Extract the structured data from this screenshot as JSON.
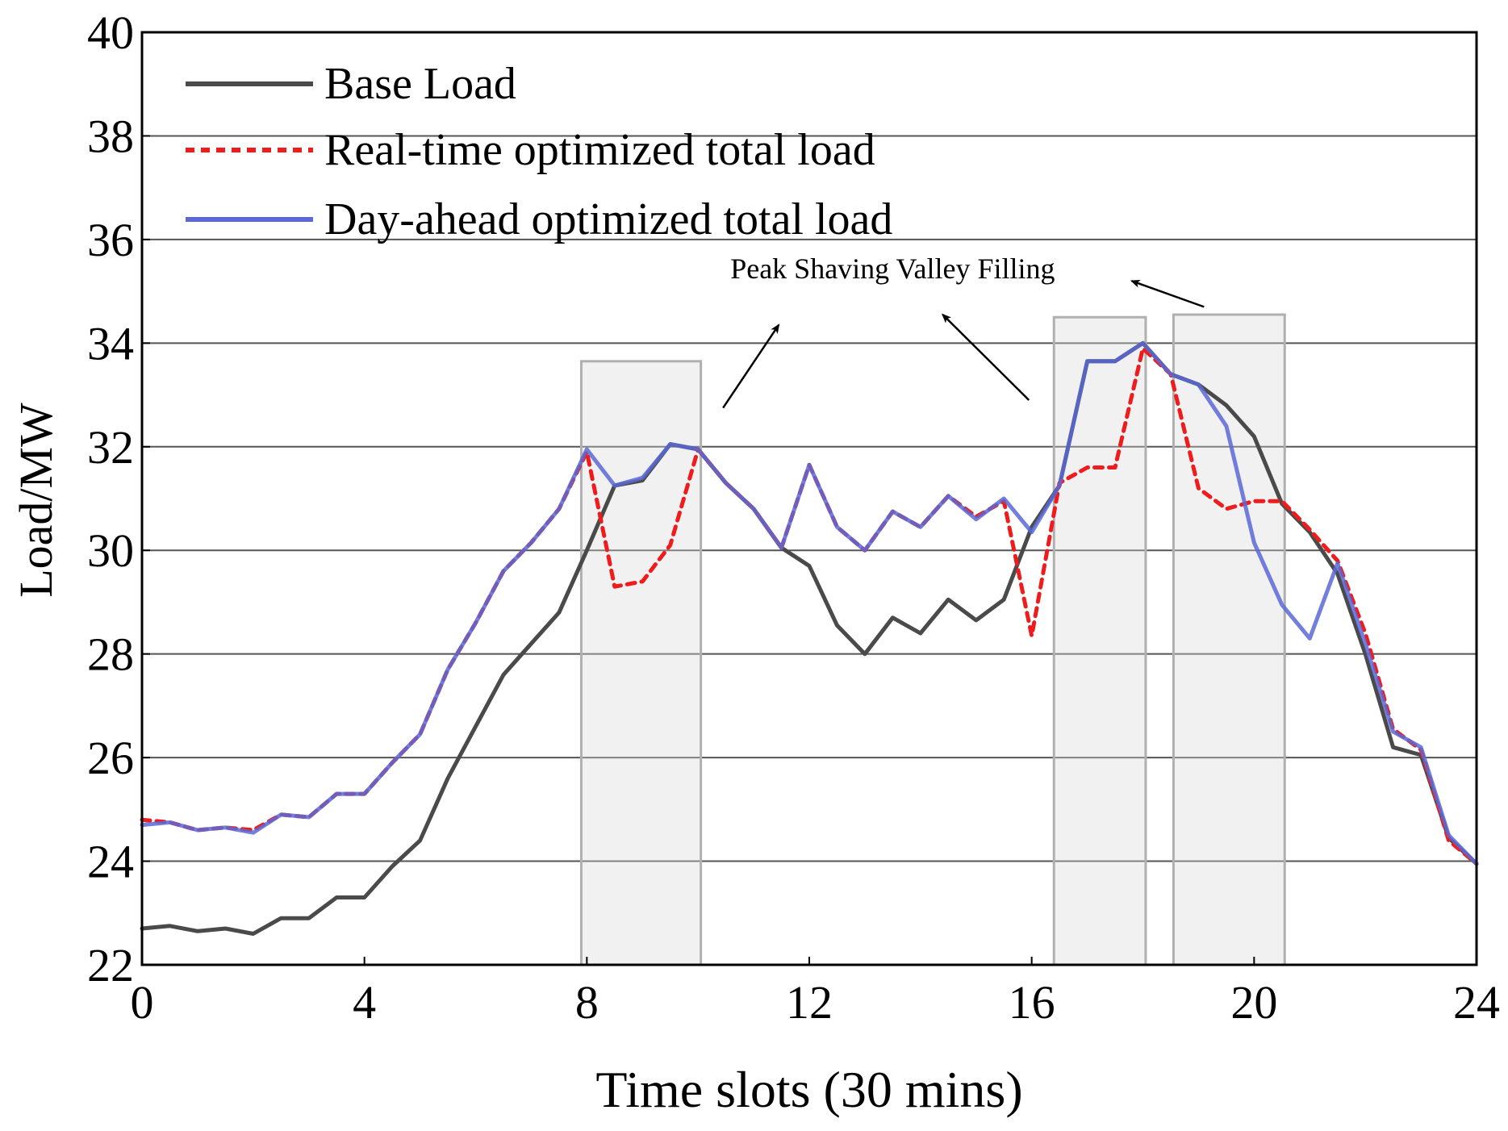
{
  "chart_data": {
    "type": "line",
    "title": "",
    "xlabel": "Time slots (30 mins)",
    "ylabel": "Load/MW",
    "xlim": [
      0,
      24
    ],
    "ylim": [
      22,
      40
    ],
    "xticks": [
      0,
      4,
      8,
      12,
      16,
      20,
      24
    ],
    "yticks": [
      22,
      24,
      26,
      28,
      30,
      32,
      34,
      36,
      38,
      40
    ],
    "grid": "horizontal",
    "legend_position": "top-left",
    "x": [
      0,
      0.5,
      1,
      1.5,
      2,
      2.5,
      3,
      3.5,
      4,
      4.5,
      5,
      5.5,
      6,
      6.5,
      7,
      7.5,
      8,
      8.5,
      9,
      9.5,
      10,
      10.5,
      11,
      11.5,
      12,
      12.5,
      13,
      13.5,
      14,
      14.5,
      15,
      15.5,
      16,
      16.5,
      17,
      17.5,
      18,
      18.5,
      19,
      19.5,
      20,
      20.5,
      21,
      21.5,
      22,
      22.5,
      23,
      23.5,
      24
    ],
    "series": [
      {
        "name": "Base Load",
        "color": "#4a4a4a",
        "style": "solid",
        "values": [
          22.7,
          22.75,
          22.65,
          22.7,
          22.6,
          22.9,
          22.9,
          23.3,
          23.3,
          23.9,
          24.4,
          25.6,
          26.6,
          27.6,
          28.2,
          28.8,
          30.0,
          31.25,
          31.35,
          32.05,
          31.95,
          31.3,
          30.8,
          30.05,
          29.7,
          28.55,
          28.0,
          28.7,
          28.4,
          29.05,
          28.65,
          29.05,
          30.45,
          31.25,
          33.65,
          33.65,
          34.0,
          33.4,
          33.2,
          32.8,
          32.2,
          30.9,
          30.35,
          29.55,
          28.0,
          26.2,
          26.05,
          24.45,
          23.95
        ]
      },
      {
        "name": "Real-time optimized total load",
        "color": "#ee1c1c",
        "style": "dashed",
        "values": [
          24.8,
          24.75,
          24.6,
          24.65,
          24.6,
          24.9,
          24.85,
          25.3,
          25.3,
          25.9,
          26.45,
          27.7,
          28.6,
          29.6,
          30.15,
          30.8,
          31.9,
          29.3,
          29.4,
          30.1,
          31.95,
          31.3,
          30.8,
          30.05,
          31.65,
          30.45,
          30.0,
          30.75,
          30.45,
          31.05,
          30.65,
          30.95,
          28.35,
          31.3,
          31.6,
          31.6,
          33.9,
          33.4,
          31.2,
          30.8,
          30.95,
          30.95,
          30.4,
          29.8,
          28.4,
          26.55,
          26.15,
          24.4,
          23.95
        ]
      },
      {
        "name": "Day-ahead optimized total load",
        "color": "#5b68d6",
        "style": "solid",
        "values": [
          24.7,
          24.75,
          24.6,
          24.65,
          24.55,
          24.9,
          24.85,
          25.3,
          25.3,
          25.9,
          26.45,
          27.7,
          28.6,
          29.6,
          30.15,
          30.8,
          31.95,
          31.25,
          31.4,
          32.05,
          31.95,
          31.3,
          30.8,
          30.05,
          31.65,
          30.45,
          30.0,
          30.75,
          30.45,
          31.05,
          30.6,
          31.0,
          30.35,
          31.25,
          33.65,
          33.65,
          34.0,
          33.4,
          33.2,
          32.4,
          30.15,
          28.95,
          28.3,
          29.75,
          28.2,
          26.5,
          26.2,
          24.5,
          23.95
        ]
      }
    ],
    "highlight_regions": [
      {
        "x": [
          7.9,
          10.05
        ],
        "y": [
          22,
          33.65
        ]
      },
      {
        "x": [
          16.4,
          18.05
        ],
        "y": [
          22,
          34.5
        ]
      },
      {
        "x": [
          18.55,
          20.55
        ],
        "y": [
          22,
          34.55
        ]
      }
    ],
    "annotation": {
      "text": "Peak Shaving Valley Filling",
      "anchor": {
        "x": 13.5,
        "y": 35.25
      },
      "arrows": [
        {
          "from": [
            10.45,
            32.75
          ],
          "to": [
            11.45,
            34.35
          ]
        },
        {
          "from": [
            15.95,
            32.9
          ],
          "to": [
            14.4,
            34.55
          ]
        },
        {
          "from": [
            19.1,
            34.7
          ],
          "to": [
            17.8,
            35.2
          ]
        }
      ]
    }
  }
}
